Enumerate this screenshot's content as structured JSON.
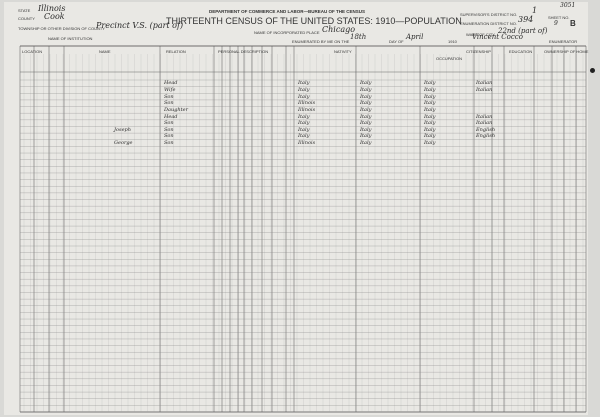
{
  "header": {
    "state_label": "STATE",
    "state_value": "Illinois",
    "county_label": "COUNTY",
    "county_value": "Cook",
    "department": "DEPARTMENT OF COMMERCE AND LABOR—BUREAU OF THE CENSUS",
    "title": "THIRTEENTH CENSUS OF THE UNITED STATES: 1910—POPULATION",
    "township_label": "TOWNSHIP OR OTHER DIVISION OF COUNTY",
    "township_value": "Precinct V.S. (part of)",
    "place_label": "NAME OF INCORPORATED PLACE",
    "place_value": "Chicago",
    "institution_label": "NAME OF INSTITUTION",
    "enumerated_label": "ENUMERATED BY ME ON THE",
    "enumerated_day": "18th",
    "day_of_label": "DAY OF",
    "enumerated_month": "April",
    "year_suffix": "1910",
    "enumerator": "Vincent Cocco",
    "enumerator_label": "ENUMERATOR",
    "supervisor_label": "SUPERVISOR'S DISTRICT NO.",
    "supervisor_value": "1",
    "ed_label": "ENUMERATION DISTRICT NO.",
    "ed_value": "394",
    "sheet_label": "SHEET NO.",
    "sheet_value": "9",
    "sheet_letter": "B",
    "ward_label": "WARD OF CITY",
    "ward_value": "22nd (part of)",
    "stamp_number": "3051"
  },
  "columns": [
    "LOCATION",
    "NAME",
    "RELATION",
    "PERSONAL DESCRIPTION",
    "NATIVITY",
    "CITIZENSHIP",
    "",
    "OCCUPATION",
    "EDUCATION",
    "OWNERSHIP OF HOME"
  ],
  "rows": [
    {
      "name": "",
      "relation": "Head",
      "birth": "Italy",
      "father": "Italy",
      "mother": "Italy",
      "lang": "Italian"
    },
    {
      "name": "",
      "relation": "Wife",
      "birth": "Italy",
      "father": "Italy",
      "mother": "Italy",
      "lang": "Italian"
    },
    {
      "name": "",
      "relation": "Son",
      "birth": "Italy",
      "father": "Italy",
      "mother": "Italy",
      "lang": ""
    },
    {
      "name": "",
      "relation": "Son",
      "birth": "Illinois",
      "father": "Italy",
      "mother": "Italy",
      "lang": ""
    },
    {
      "name": "",
      "relation": "Daughter",
      "birth": "Illinois",
      "father": "Italy",
      "mother": "Italy",
      "lang": ""
    },
    {
      "name": "",
      "relation": "Head",
      "birth": "Italy",
      "father": "Italy",
      "mother": "Italy",
      "lang": "Italian"
    },
    {
      "name": "",
      "relation": "Son",
      "birth": "Italy",
      "father": "Italy",
      "mother": "Italy",
      "lang": "Italian"
    },
    {
      "name": "Joseph",
      "relation": "Son",
      "birth": "Italy",
      "father": "Italy",
      "mother": "Italy",
      "lang": "English"
    },
    {
      "name": "",
      "relation": "Son",
      "birth": "Italy",
      "father": "Italy",
      "mother": "Italy",
      "lang": "English"
    },
    {
      "name": "George",
      "relation": "Son",
      "birth": "Illinois",
      "father": "Italy",
      "mother": "Italy",
      "lang": ""
    }
  ]
}
